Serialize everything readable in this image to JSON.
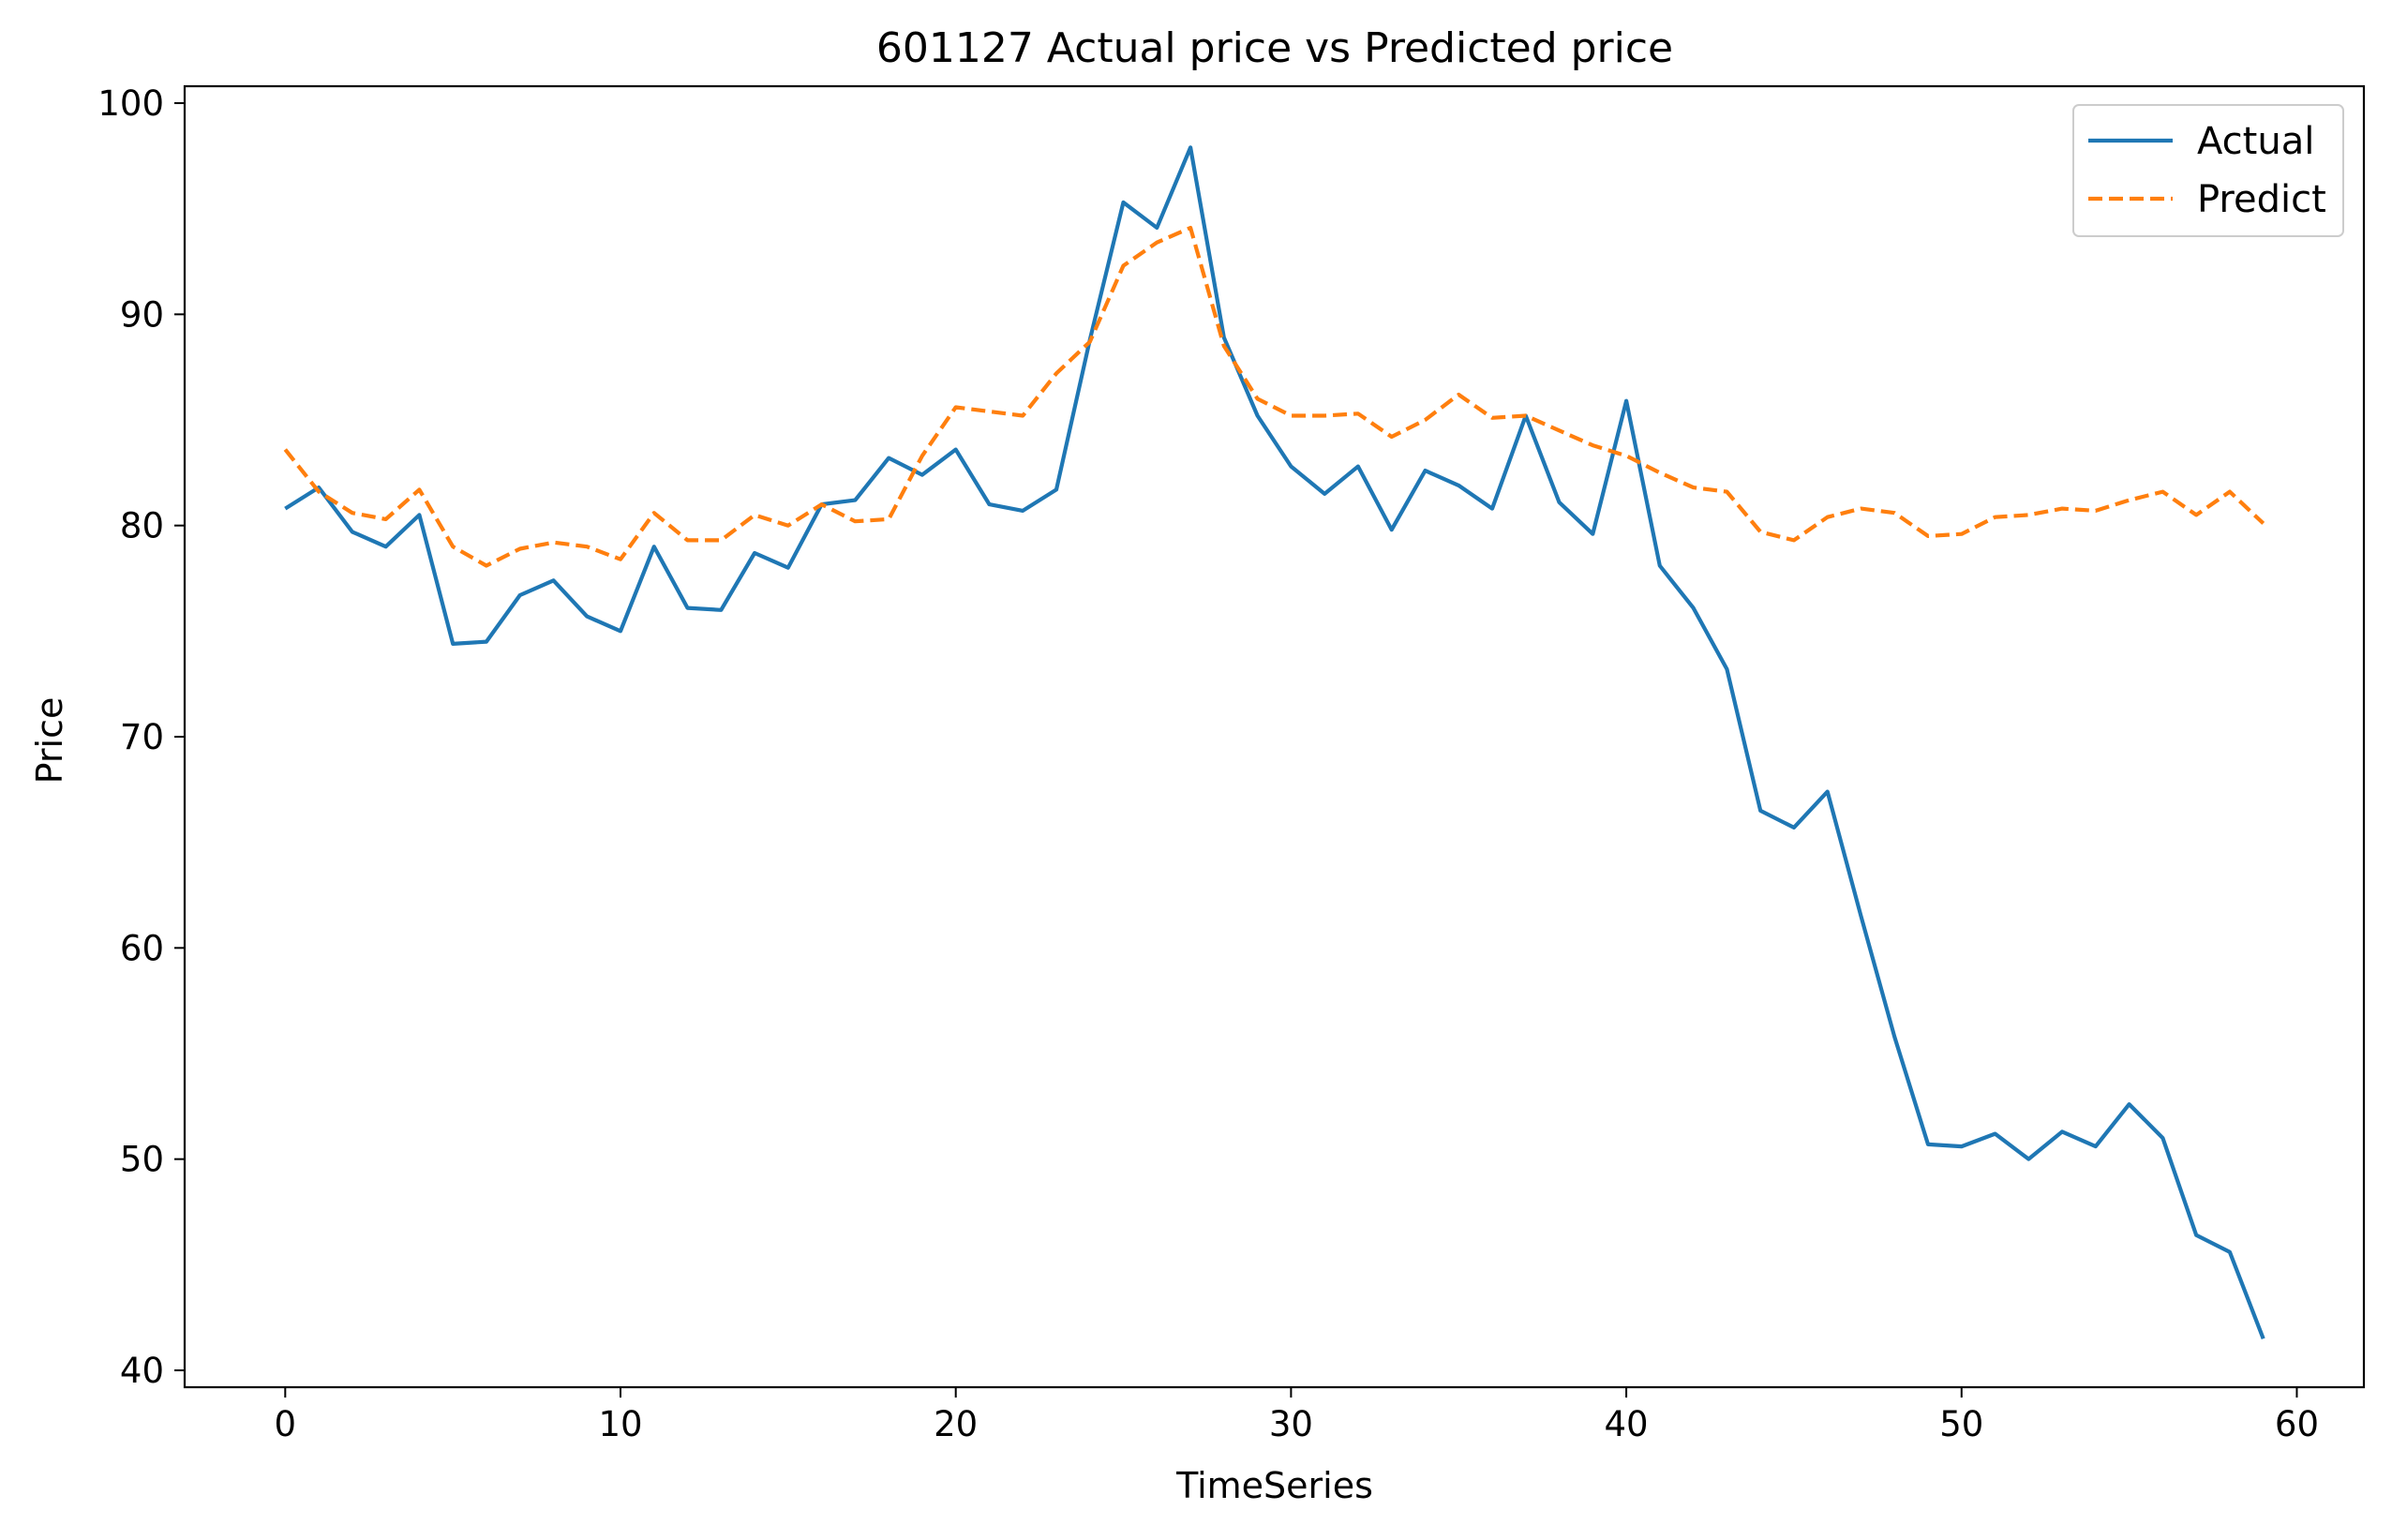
{
  "chart_data": {
    "type": "line",
    "title": "601127 Actual price vs Predicted price",
    "xlabel": "TimeSeries",
    "ylabel": "Price",
    "xlim": [
      -3,
      62
    ],
    "ylim": [
      39.2,
      100.8
    ],
    "xticks": [
      0,
      10,
      20,
      30,
      40,
      50,
      60
    ],
    "yticks": [
      40,
      50,
      60,
      70,
      80,
      90,
      100
    ],
    "grid": false,
    "legend_position": "top-right",
    "x": [
      0,
      1,
      2,
      3,
      4,
      5,
      6,
      7,
      8,
      9,
      10,
      11,
      12,
      13,
      14,
      15,
      16,
      17,
      18,
      19,
      20,
      21,
      22,
      23,
      24,
      25,
      26,
      27,
      28,
      29,
      30,
      31,
      32,
      33,
      34,
      35,
      36,
      37,
      38,
      39,
      40,
      41,
      42,
      43,
      44,
      45,
      46,
      47,
      48,
      49,
      50,
      51,
      52,
      53,
      54,
      55,
      56,
      57,
      58,
      59
    ],
    "series": [
      {
        "name": "Actual",
        "color": "#1f77b4",
        "style": "solid",
        "values": [
          80.8,
          81.8,
          79.7,
          79.0,
          80.5,
          74.4,
          74.5,
          76.7,
          77.4,
          75.7,
          75.0,
          79.0,
          76.1,
          76.0,
          78.7,
          78.0,
          81.0,
          81.2,
          83.2,
          82.4,
          83.6,
          81.0,
          80.7,
          81.7,
          88.8,
          95.3,
          94.1,
          97.9,
          88.9,
          85.2,
          82.8,
          81.5,
          82.8,
          79.8,
          82.6,
          81.9,
          80.8,
          85.2,
          81.1,
          79.6,
          85.9,
          78.1,
          76.1,
          73.2,
          66.5,
          65.7,
          67.4,
          61.5,
          55.8,
          50.7,
          50.6,
          51.2,
          50.0,
          51.3,
          50.6,
          52.6,
          51.0,
          46.4,
          45.6,
          41.5
        ]
      },
      {
        "name": "Predict",
        "color": "#ff7f0e",
        "style": "dashed",
        "values": [
          83.6,
          81.6,
          80.6,
          80.3,
          81.7,
          79.0,
          78.1,
          78.9,
          79.2,
          79.0,
          78.4,
          80.6,
          79.3,
          79.3,
          80.5,
          80.0,
          81.0,
          80.2,
          80.3,
          83.3,
          85.6,
          85.4,
          85.2,
          87.2,
          88.7,
          92.3,
          93.4,
          94.1,
          88.5,
          86.0,
          85.2,
          85.2,
          85.3,
          84.2,
          85.0,
          86.2,
          85.1,
          85.2,
          84.5,
          83.8,
          83.3,
          82.5,
          81.8,
          81.6,
          79.7,
          79.3,
          80.4,
          80.8,
          80.6,
          79.5,
          79.6,
          80.4,
          80.5,
          80.8,
          80.7,
          81.2,
          81.6,
          80.5,
          81.6,
          80.1
        ]
      }
    ]
  }
}
